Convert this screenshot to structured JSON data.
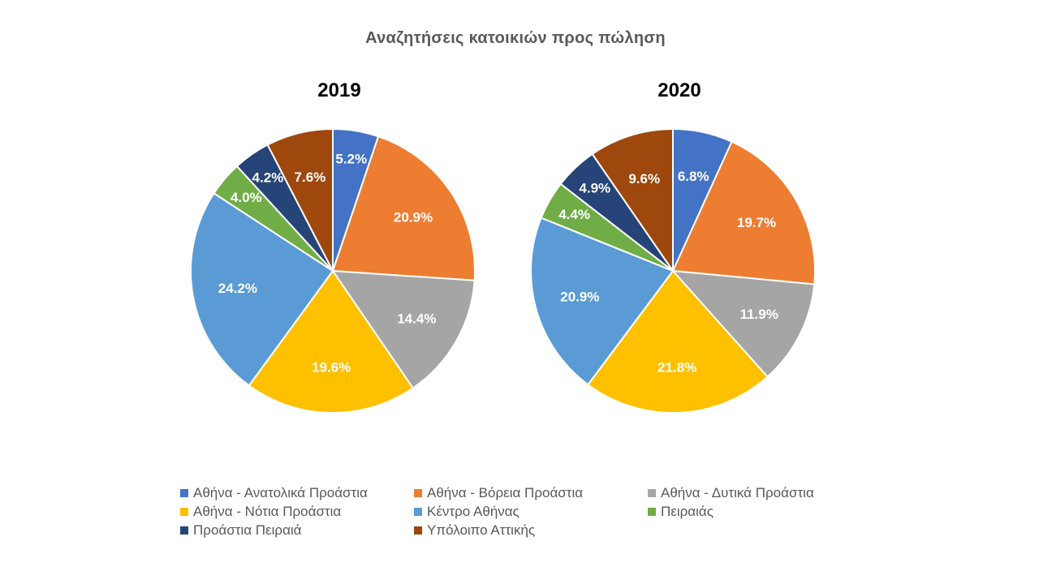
{
  "title": "Αναζητήσεις  κατοικιών προς πώληση",
  "chart_data": [
    {
      "type": "pie",
      "title": "2019",
      "categories": [
        "Αθήνα - Ανατολικά Προάστια",
        "Αθήνα - Βόρεια Προάστια",
        "Αθήνα - Δυτικά Προάστια",
        "Αθήνα - Νότια Προάστια",
        "Κέντρο Αθήνας",
        "Πειραιάς",
        "Προάστια Πειραιά",
        "Υπόλοιπο Αττικής"
      ],
      "values": [
        5.2,
        20.9,
        14.4,
        19.6,
        24.2,
        4.0,
        4.2,
        7.6
      ],
      "labels": [
        "5.2%",
        "20.9%",
        "14.4%",
        "19.6%",
        "24.2%",
        "4.0%",
        "4.2%",
        "7.6%"
      ]
    },
    {
      "type": "pie",
      "title": "2020",
      "categories": [
        "Αθήνα - Ανατολικά Προάστια",
        "Αθήνα - Βόρεια Προάστια",
        "Αθήνα - Δυτικά Προάστια",
        "Αθήνα - Νότια Προάστια",
        "Κέντρο Αθήνας",
        "Πειραιάς",
        "Προάστια Πειραιά",
        "Υπόλοιπο Αττικής"
      ],
      "values": [
        6.8,
        19.7,
        11.9,
        21.8,
        20.9,
        4.4,
        4.9,
        9.6
      ],
      "labels": [
        "6.8%",
        "19.7%",
        "11.9%",
        "21.8%",
        "20.9%",
        "4.4%",
        "4.9%",
        "9.6%"
      ]
    }
  ],
  "colors": [
    "#4472C4",
    "#ED7D31",
    "#A5A5A5",
    "#FFC000",
    "#5B9BD5",
    "#70AD47",
    "#264478",
    "#9E480E"
  ],
  "legend": {
    "position": "bottom",
    "items": [
      {
        "label": "Αθήνα - Ανατολικά Προάστια",
        "color": "#4472C4"
      },
      {
        "label": "Αθήνα - Βόρεια Προάστια",
        "color": "#ED7D31"
      },
      {
        "label": "Αθήνα - Δυτικά Προάστια",
        "color": "#A5A5A5"
      },
      {
        "label": "Αθήνα - Νότια Προάστια",
        "color": "#FFC000"
      },
      {
        "label": "Κέντρο Αθήνας",
        "color": "#5B9BD5"
      },
      {
        "label": "Πειραιάς",
        "color": "#70AD47"
      },
      {
        "label": "Προάστια Πειραιά",
        "color": "#264478"
      },
      {
        "label": "Υπόλοιπο Αττικής",
        "color": "#9E480E"
      }
    ]
  }
}
